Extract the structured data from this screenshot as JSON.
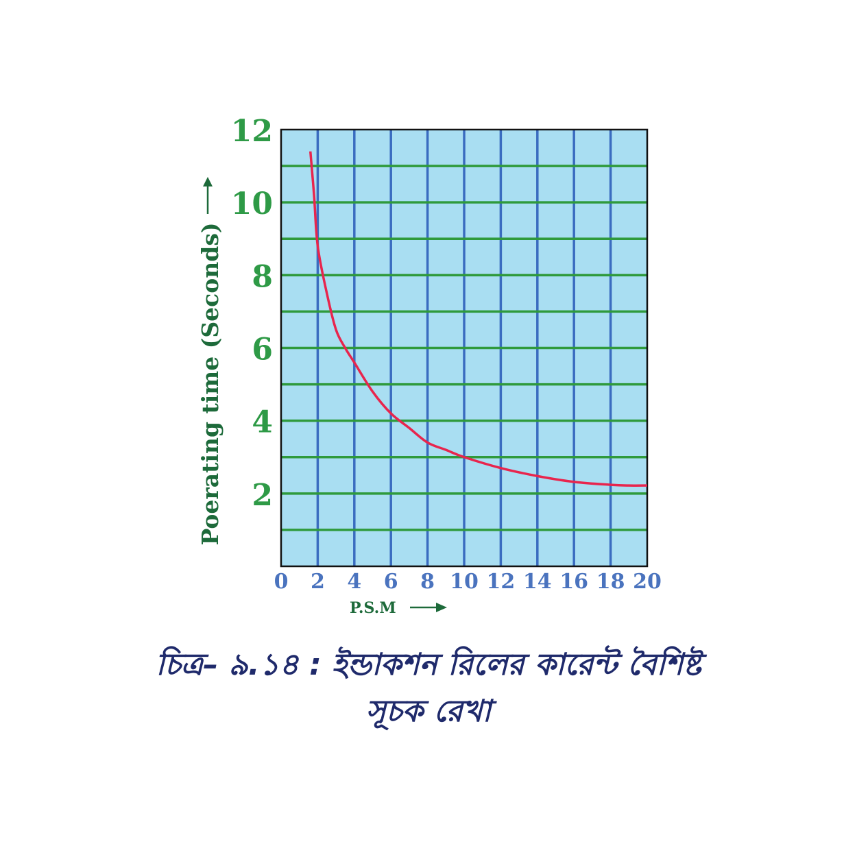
{
  "chart_data": {
    "type": "line",
    "title": "",
    "xlabel": "P.S.M",
    "ylabel": "Poerating time (Seconds)",
    "xlim": [
      0,
      20
    ],
    "ylim": [
      0,
      12
    ],
    "x_ticks": [
      "0",
      "2",
      "4",
      "6",
      "8",
      "10",
      "12",
      "14",
      "16",
      "18",
      "20"
    ],
    "y_ticks": [
      "2",
      "4",
      "6",
      "8",
      "10",
      "12"
    ],
    "x_grid_step": 2,
    "y_grid_step": 1,
    "grid": true,
    "series": [
      {
        "x": [
          1.6,
          1.8,
          2,
          2.5,
          3,
          3.5,
          4,
          5,
          6,
          7,
          8,
          9,
          10,
          12,
          14,
          16,
          18,
          19,
          20
        ],
        "y": [
          11.4,
          10.2,
          8.8,
          7.5,
          6.5,
          6.0,
          5.6,
          4.8,
          4.2,
          3.8,
          3.4,
          3.2,
          3.0,
          2.7,
          2.48,
          2.32,
          2.24,
          2.22,
          2.22
        ]
      }
    ]
  },
  "colors": {
    "plot_bg": "#a9def2",
    "vertical_grid": "#3a6cc0",
    "horizontal_grid": "#2f9a3c",
    "curve": "#e8254d",
    "x_tick_text": "#4a73be",
    "y_tick_text": "#2e9a46",
    "axis_label": "#1d6a3a",
    "caption": "#1f2a6b"
  },
  "caption": {
    "line1": "চিত্র– ৯.১৪ : ইন্ডাকশন রিলের কারেন্ট বৈশিষ্ট",
    "line2": "সূচক রেখা"
  }
}
